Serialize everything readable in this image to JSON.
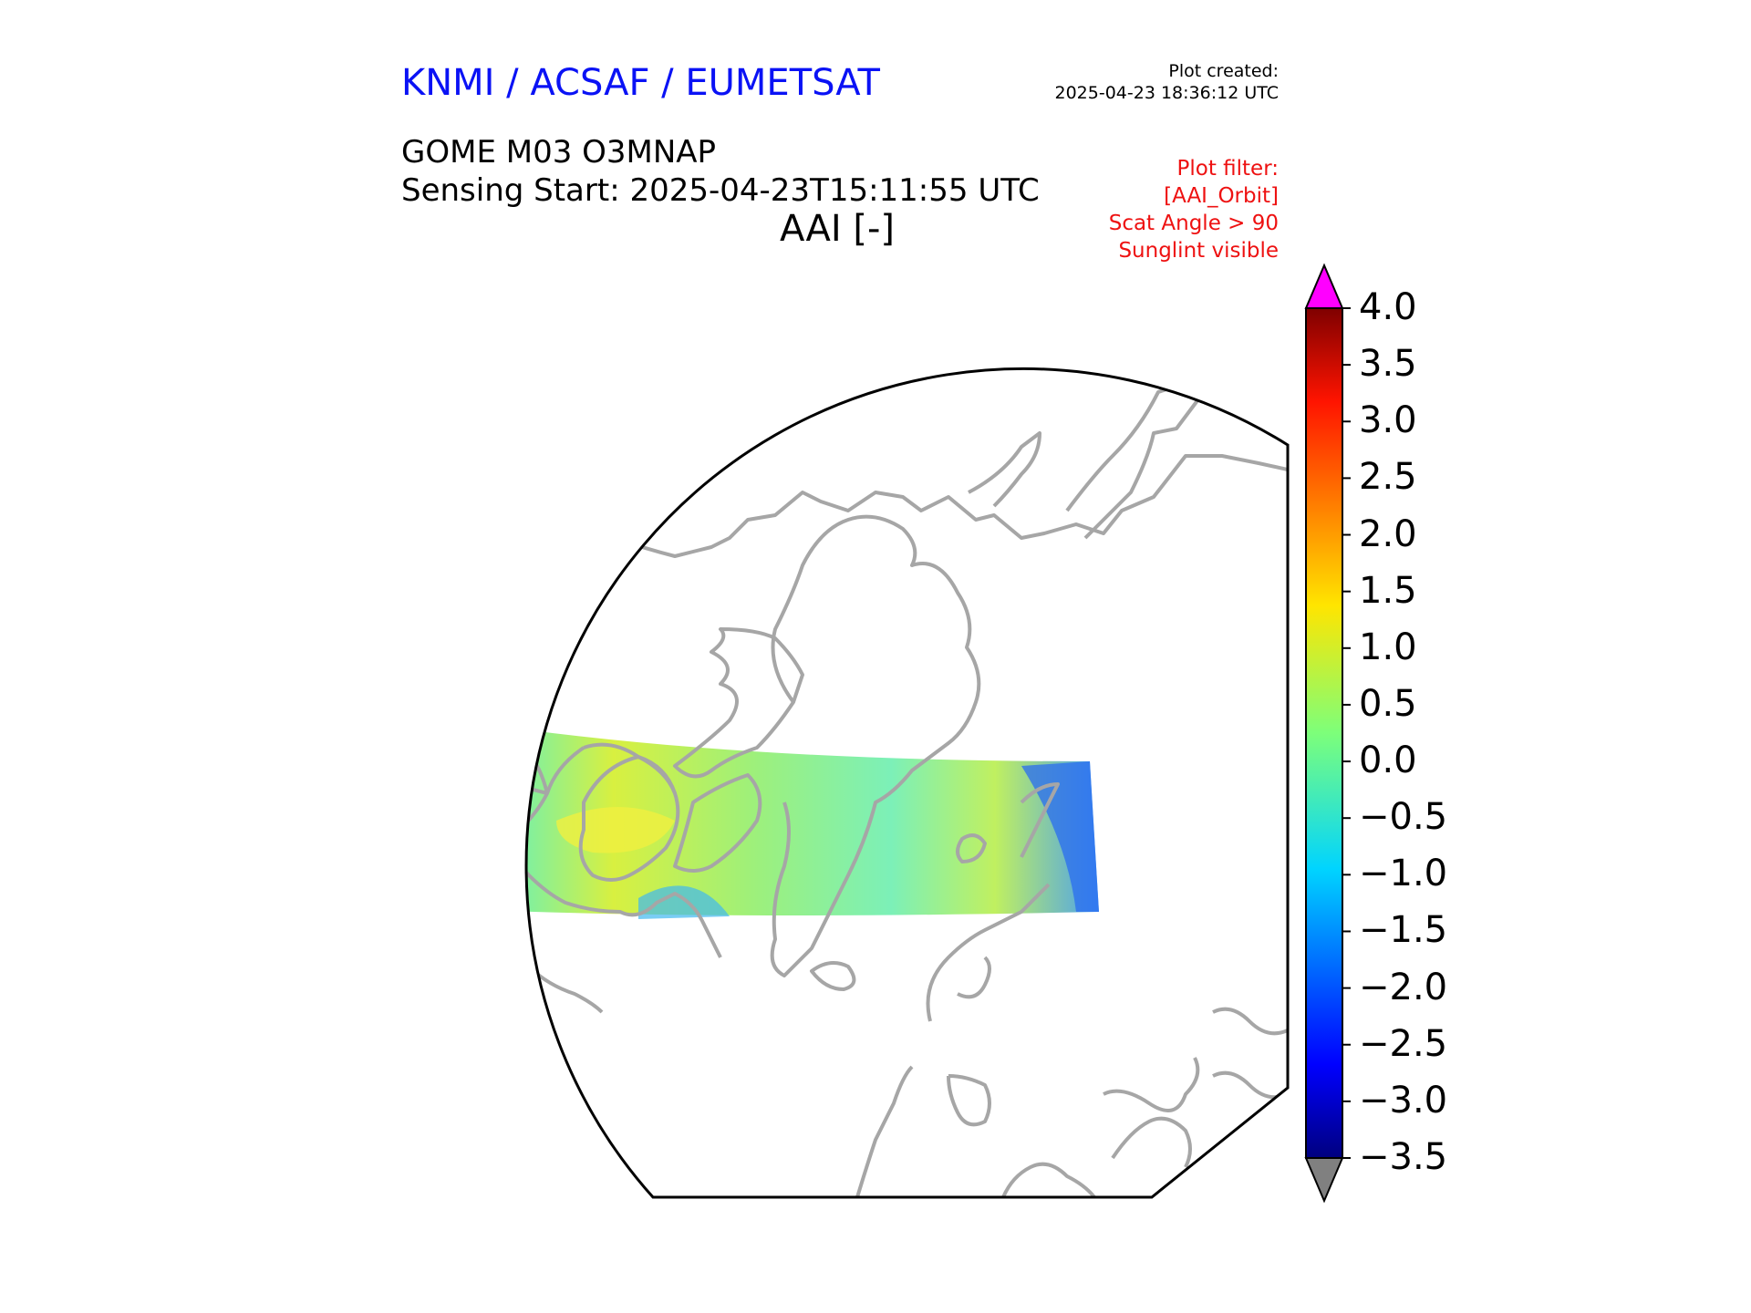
{
  "header": {
    "organization": "KNMI / ACSAF / EUMETSAT",
    "created_label": "Plot created:",
    "created_time": "2025-04-23 18:36:12 UTC",
    "product": "GOME M03 O3MNAP",
    "sensing_start": "Sensing Start: 2025-04-23T15:11:55 UTC",
    "variable": "AAI [-]"
  },
  "filter": {
    "title": "Plot filter:",
    "lines": [
      "[AAI_Orbit]",
      "Scat Angle > 90",
      "Sunglint visible"
    ]
  },
  "colorbar": {
    "min": -3.5,
    "max": 4.0,
    "ticks": [
      "4.0",
      "3.5",
      "3.0",
      "2.5",
      "2.0",
      "1.5",
      "1.0",
      "0.5",
      "0.0",
      "−0.5",
      "−1.0",
      "−1.5",
      "−2.0",
      "−2.5",
      "−3.0",
      "−3.5"
    ],
    "over_color": "#ff00ff",
    "under_color": "#808080",
    "colormap": "jet"
  },
  "map": {
    "projection": "north-polar-stereographic",
    "coastline_color": "#a0a0a0",
    "swath": "GOME orbit swath across North America, Greenland and the Atlantic"
  }
}
